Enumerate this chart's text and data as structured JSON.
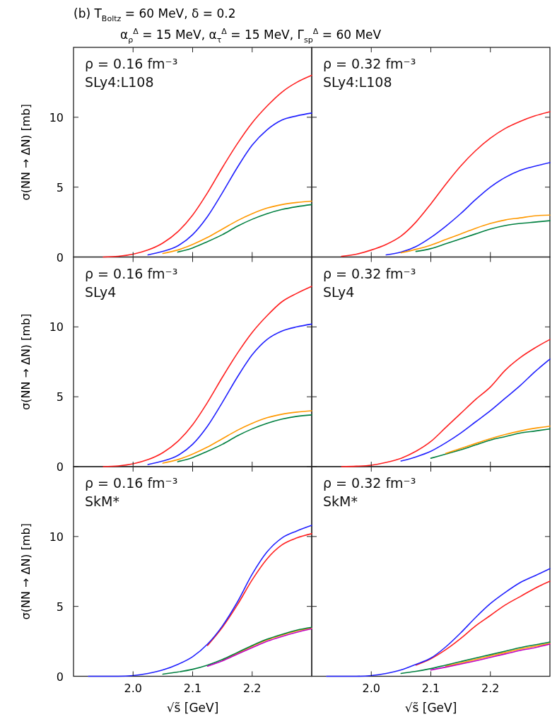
{
  "chart_data": [
    {
      "type": "line",
      "title": "(b)     T$_{Boltz}$ = 60 MeV,  δ = 0.2",
      "subtitle": "α$_{ρ}$$^{Δ}$ = 15 MeV,  α$_{τ}$$^{Δ}$ = 15 MeV,  Γ$_{sp}$$^{Δ}$ = 60 MeV",
      "ylabel": "σ(NN → ΔN) [mb]",
      "annotations": [
        "ρ = 0.16 fm⁻³",
        "SLy4:L108"
      ],
      "xlim": [
        1.9,
        2.3
      ],
      "ylim": [
        0,
        15
      ],
      "xticks": [
        2,
        2.1,
        2.2
      ],
      "yticks": [
        0,
        5,
        10
      ],
      "tick_labels": "y",
      "x": [
        1.95,
        1.975,
        2.0,
        2.025,
        2.05,
        2.075,
        2.1,
        2.125,
        2.15,
        2.175,
        2.2,
        2.225,
        2.25,
        2.275,
        2.3
      ],
      "series": [
        {
          "color": "#ff2020",
          "values": [
            0,
            0.05,
            0.2,
            0.5,
            1.0,
            1.8,
            3.0,
            4.6,
            6.4,
            8.1,
            9.6,
            10.8,
            11.8,
            12.5,
            13.0
          ]
        },
        {
          "color": "#2020ff",
          "values": [
            null,
            null,
            null,
            0.15,
            0.4,
            0.8,
            1.6,
            2.9,
            4.6,
            6.4,
            8.0,
            9.1,
            9.8,
            10.1,
            10.3
          ]
        },
        {
          "color": "#ff9900",
          "values": [
            null,
            null,
            null,
            null,
            0.25,
            0.5,
            0.9,
            1.4,
            2.0,
            2.6,
            3.1,
            3.5,
            3.75,
            3.9,
            4.0
          ]
        },
        {
          "color": "#008040",
          "values": [
            null,
            null,
            null,
            null,
            null,
            0.35,
            0.65,
            1.1,
            1.6,
            2.2,
            2.7,
            3.1,
            3.4,
            3.6,
            3.75
          ]
        }
      ]
    },
    {
      "type": "line",
      "annotations": [
        "ρ = 0.32 fm⁻³",
        "SLy4:L108"
      ],
      "xlim": [
        1.9,
        2.3
      ],
      "ylim": [
        0,
        15
      ],
      "xticks": [
        2,
        2.1,
        2.2
      ],
      "yticks": [
        0,
        5,
        10
      ],
      "tick_labels": false,
      "x": [
        1.95,
        1.975,
        2.0,
        2.025,
        2.05,
        2.075,
        2.1,
        2.125,
        2.15,
        2.175,
        2.2,
        2.225,
        2.25,
        2.275,
        2.3
      ],
      "series": [
        {
          "color": "#ff2020",
          "values": [
            0.05,
            0.2,
            0.5,
            0.9,
            1.5,
            2.5,
            3.8,
            5.2,
            6.5,
            7.6,
            8.5,
            9.2,
            9.7,
            10.1,
            10.4
          ]
        },
        {
          "color": "#2020ff",
          "values": [
            null,
            null,
            null,
            0.15,
            0.35,
            0.75,
            1.4,
            2.2,
            3.1,
            4.1,
            5.0,
            5.7,
            6.2,
            6.5,
            6.75
          ]
        },
        {
          "color": "#ff9900",
          "values": [
            null,
            null,
            null,
            null,
            0.3,
            0.55,
            0.85,
            1.25,
            1.65,
            2.05,
            2.4,
            2.65,
            2.8,
            2.95,
            3.0
          ]
        },
        {
          "color": "#008040",
          "values": [
            null,
            null,
            null,
            null,
            null,
            0.4,
            0.6,
            0.95,
            1.3,
            1.65,
            2.0,
            2.25,
            2.4,
            2.5,
            2.6
          ]
        }
      ]
    },
    {
      "type": "line",
      "ylabel": "σ(NN → ΔN) [mb]",
      "annotations": [
        "ρ = 0.16 fm⁻³",
        "SLy4"
      ],
      "xlim": [
        1.9,
        2.3
      ],
      "ylim": [
        0,
        15
      ],
      "xticks": [
        2,
        2.1,
        2.2
      ],
      "yticks": [
        0,
        5,
        10
      ],
      "tick_labels": "y",
      "x": [
        1.95,
        1.975,
        2.0,
        2.025,
        2.05,
        2.075,
        2.1,
        2.125,
        2.15,
        2.175,
        2.2,
        2.225,
        2.25,
        2.275,
        2.3
      ],
      "series": [
        {
          "color": "#ff2020",
          "values": [
            0,
            0.05,
            0.2,
            0.5,
            1.0,
            1.8,
            3.0,
            4.6,
            6.4,
            8.1,
            9.6,
            10.8,
            11.8,
            12.4,
            12.9
          ]
        },
        {
          "color": "#2020ff",
          "values": [
            null,
            null,
            null,
            0.15,
            0.4,
            0.8,
            1.6,
            2.9,
            4.6,
            6.4,
            8.0,
            9.1,
            9.7,
            10.0,
            10.2
          ]
        },
        {
          "color": "#ff9900",
          "values": [
            null,
            null,
            null,
            null,
            0.25,
            0.5,
            0.9,
            1.4,
            2.0,
            2.6,
            3.1,
            3.5,
            3.75,
            3.9,
            4.0
          ]
        },
        {
          "color": "#008040",
          "values": [
            null,
            null,
            null,
            null,
            null,
            0.35,
            0.65,
            1.1,
            1.6,
            2.2,
            2.7,
            3.1,
            3.4,
            3.6,
            3.7
          ]
        }
      ]
    },
    {
      "type": "line",
      "annotations": [
        "ρ = 0.32 fm⁻³",
        "SLy4"
      ],
      "xlim": [
        1.9,
        2.3
      ],
      "ylim": [
        0,
        15
      ],
      "xticks": [
        2,
        2.1,
        2.2
      ],
      "yticks": [
        0,
        5,
        10
      ],
      "tick_labels": false,
      "x": [
        1.95,
        1.975,
        2.0,
        2.025,
        2.05,
        2.075,
        2.1,
        2.125,
        2.15,
        2.175,
        2.2,
        2.225,
        2.25,
        2.275,
        2.3
      ],
      "series": [
        {
          "color": "#ff2020",
          "values": [
            0,
            0.03,
            0.1,
            0.3,
            0.6,
            1.1,
            1.8,
            2.8,
            3.8,
            4.8,
            5.7,
            6.9,
            7.8,
            8.5,
            9.1
          ]
        },
        {
          "color": "#2020ff",
          "values": [
            null,
            null,
            null,
            null,
            0.4,
            0.7,
            1.1,
            1.7,
            2.4,
            3.2,
            4.0,
            4.9,
            5.8,
            6.8,
            7.7
          ]
        },
        {
          "color": "#008040",
          "values": [
            null,
            null,
            null,
            null,
            null,
            null,
            0.6,
            0.9,
            1.2,
            1.55,
            1.9,
            2.15,
            2.4,
            2.55,
            2.7
          ]
        },
        {
          "color": "#ff9900",
          "values": [
            null,
            null,
            null,
            null,
            null,
            null,
            null,
            0.95,
            1.3,
            1.65,
            2.0,
            2.3,
            2.55,
            2.75,
            2.9
          ]
        }
      ]
    },
    {
      "type": "line",
      "xlabel": "√s̃ [GeV]",
      "ylabel": "σ(NN → ΔN) [mb]",
      "annotations": [
        "ρ = 0.16 fm⁻³",
        "SkM*"
      ],
      "xlim": [
        1.9,
        2.3
      ],
      "ylim": [
        0,
        15
      ],
      "xticks": [
        {
          "value": 2,
          "label": "2.0"
        },
        {
          "value": 2.1,
          "label": "2.1"
        },
        {
          "value": 2.2,
          "label": "2.2"
        }
      ],
      "yticks": [
        0,
        5,
        10
      ],
      "x": [
        1.925,
        1.95,
        1.975,
        2.0,
        2.025,
        2.05,
        2.075,
        2.1,
        2.125,
        2.15,
        2.175,
        2.2,
        2.225,
        2.25,
        2.275,
        2.3
      ],
      "series": [
        {
          "color": "#ff9900",
          "values": [
            null,
            null,
            null,
            null,
            null,
            null,
            null,
            null,
            null,
            1.15,
            1.65,
            2.15,
            2.6,
            2.95,
            3.25,
            3.45
          ]
        },
        {
          "color": "#008040",
          "values": [
            null,
            null,
            null,
            null,
            null,
            0.15,
            0.3,
            0.5,
            0.8,
            1.2,
            1.7,
            2.2,
            2.65,
            3.0,
            3.3,
            3.5
          ]
        },
        {
          "color": "#c000c0",
          "values": [
            null,
            null,
            null,
            null,
            null,
            null,
            null,
            null,
            0.72,
            1.1,
            1.58,
            2.05,
            2.5,
            2.85,
            3.15,
            3.4
          ]
        },
        {
          "color": "#ff2020",
          "values": [
            null,
            null,
            null,
            null,
            null,
            null,
            null,
            null,
            2.2,
            3.5,
            5.1,
            6.9,
            8.4,
            9.4,
            9.9,
            10.2
          ]
        },
        {
          "color": "#2020ff",
          "values": [
            0,
            0,
            0,
            0.05,
            0.2,
            0.45,
            0.85,
            1.4,
            2.3,
            3.6,
            5.3,
            7.3,
            8.9,
            9.9,
            10.4,
            10.8
          ]
        }
      ]
    },
    {
      "type": "line",
      "xlabel": "√s̃ [GeV]",
      "annotations": [
        "ρ = 0.32 fm⁻³",
        "SkM*"
      ],
      "xlim": [
        1.9,
        2.3
      ],
      "ylim": [
        0,
        15
      ],
      "xticks": [
        {
          "value": 2,
          "label": "2.0"
        },
        {
          "value": 2.1,
          "label": "2.1"
        },
        {
          "value": 2.2,
          "label": "2.2"
        }
      ],
      "yticks": [
        0,
        5,
        10
      ],
      "tick_labels": "x",
      "x": [
        1.925,
        1.95,
        1.975,
        2.0,
        2.025,
        2.05,
        2.075,
        2.1,
        2.125,
        2.15,
        2.175,
        2.2,
        2.225,
        2.25,
        2.275,
        2.3
      ],
      "series": [
        {
          "color": "#ff9900",
          "values": [
            null,
            null,
            null,
            null,
            null,
            null,
            null,
            null,
            0.72,
            0.95,
            1.2,
            1.45,
            1.7,
            1.95,
            2.15,
            2.35
          ]
        },
        {
          "color": "#008040",
          "values": [
            null,
            null,
            null,
            null,
            null,
            0.2,
            0.35,
            0.55,
            0.8,
            1.05,
            1.3,
            1.55,
            1.8,
            2.05,
            2.25,
            2.45
          ]
        },
        {
          "color": "#c000c0",
          "values": [
            null,
            null,
            null,
            null,
            null,
            null,
            null,
            0.45,
            0.65,
            0.87,
            1.1,
            1.35,
            1.6,
            1.85,
            2.05,
            2.3
          ]
        },
        {
          "color": "#ff2020",
          "values": [
            null,
            null,
            null,
            null,
            null,
            null,
            0.8,
            1.25,
            1.9,
            2.7,
            3.6,
            4.35,
            5.1,
            5.7,
            6.3,
            6.8
          ]
        },
        {
          "color": "#2020ff",
          "values": [
            0,
            0,
            0,
            0.05,
            0.2,
            0.45,
            0.85,
            1.3,
            2.1,
            3.1,
            4.2,
            5.2,
            6.0,
            6.7,
            7.2,
            7.7
          ]
        }
      ]
    }
  ]
}
